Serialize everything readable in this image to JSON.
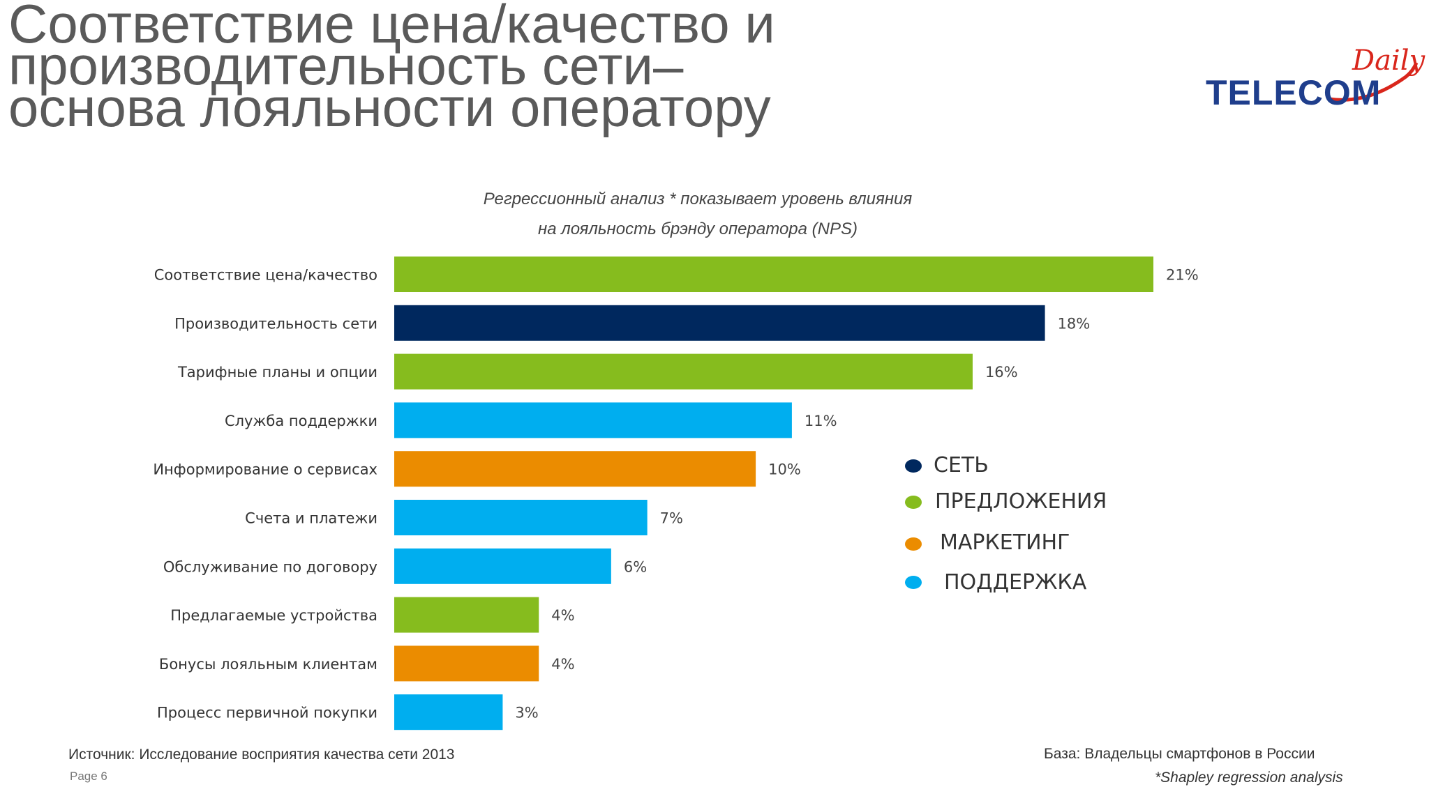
{
  "title": {
    "line1": "Соответствие цена/качество и",
    "line2": "производительность сети–",
    "line3": "основа лояльности оператору"
  },
  "logo": {
    "main": "TELECOM",
    "script": "Daily"
  },
  "subtitle": {
    "line1": "Регрессионный анализ * показывает  уровень влияния",
    "line2": "на лояльность брэнду оператора (NPS)"
  },
  "legend": [
    {
      "label": "СЕТЬ",
      "color": "#00285e"
    },
    {
      "label": "ПРЕДЛОЖЕНИЯ",
      "color": "#86bc1e"
    },
    {
      "label": "МАРКЕТИНГ",
      "color": "#eb8c00"
    },
    {
      "label": "ПОДДЕРЖКА",
      "color": "#00aeef"
    }
  ],
  "footer": {
    "source": "Источник: Исследование восприятия качества сети 2013",
    "page": "Page 6",
    "base": "База: Владельцы смартфонов в России",
    "note": "*Shapley regression analysis"
  },
  "chart_data": {
    "type": "bar",
    "orientation": "horizontal",
    "categories": [
      "Соответствие цена/качество",
      "Производительность сети",
      "Тарифные планы и опции",
      "Служба поддержки",
      "Информирование  о сервисах",
      "Счета и платежи",
      "Обслуживание по договору",
      "Предлагаемые устройства",
      "Бонусы лояльным  клиентам",
      "Процесс первичной покупки"
    ],
    "values": [
      21,
      18,
      16,
      11,
      10,
      7,
      6,
      4,
      4,
      3
    ],
    "value_labels": [
      "21%",
      "18%",
      "16%",
      "11%",
      "10%",
      "7%",
      "6%",
      "4%",
      "4%",
      "3%"
    ],
    "groups": [
      "ПРЕДЛОЖЕНИЯ",
      "СЕТЬ",
      "ПРЕДЛОЖЕНИЯ",
      "ПОДДЕРЖКА",
      "МАРКЕТИНГ",
      "ПОДДЕРЖКА",
      "ПОДДЕРЖКА",
      "ПРЕДЛОЖЕНИЯ",
      "МАРКЕТИНГ",
      "ПОДДЕРЖКА"
    ],
    "colors": [
      "#86bc1e",
      "#00285e",
      "#86bc1e",
      "#00aeef",
      "#eb8c00",
      "#00aeef",
      "#00aeef",
      "#86bc1e",
      "#eb8c00",
      "#00aeef"
    ],
    "xlim": [
      0,
      21
    ],
    "grid": false,
    "legend_position": "right"
  }
}
